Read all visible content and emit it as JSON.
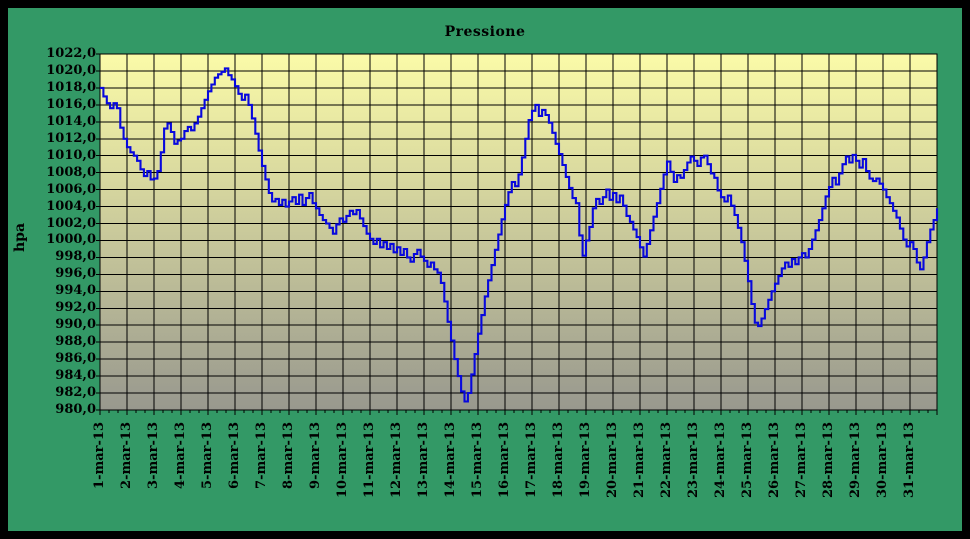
{
  "window": {
    "outer_border_color": "#000000",
    "chart_background_color": "#339966"
  },
  "chart_data": {
    "type": "line",
    "title": "Pressione",
    "xlabel": "",
    "ylabel": "hpa",
    "ylim": [
      980,
      1022
    ],
    "y_tick_step": 2,
    "grid": true,
    "legend": "none",
    "plot_background_gradient_top": "#fbfba8",
    "plot_background_gradient_bottom": "#98988e",
    "grid_color": "#000000",
    "line_color": "#0808dd",
    "y_tick_labels": [
      "1022,0",
      "1020,0",
      "1018,0",
      "1016,0",
      "1014,0",
      "1012,0",
      "1010,0",
      "1008,0",
      "1006,0",
      "1004,0",
      "1002,0",
      "1000,0",
      "998,0",
      "996,0",
      "994,0",
      "992,0",
      "990,0",
      "988,0",
      "986,0",
      "984,0",
      "982,0",
      "980,0"
    ],
    "x_tick_labels": [
      "1-mar-13",
      "2-mar-13",
      "3-mar-13",
      "4-mar-13",
      "5-mar-13",
      "6-mar-13",
      "7-mar-13",
      "8-mar-13",
      "9-mar-13",
      "10-mar-13",
      "11-mar-13",
      "12-mar-13",
      "13-mar-13",
      "14-mar-13",
      "15-mar-13",
      "16-mar-13",
      "17-mar-13",
      "18-mar-13",
      "19-mar-13",
      "20-mar-13",
      "21-mar-13",
      "22-mar-13",
      "23-mar-13",
      "24-mar-13",
      "25-mar-13",
      "26-mar-13",
      "27-mar-13",
      "28-mar-13",
      "29-mar-13",
      "30-mar-13",
      "31-mar-13"
    ],
    "x_minor_ticks_per_day": 3,
    "series": [
      {
        "name": "Pressione (hpa)",
        "x_start": "1-mar-13 00:00",
        "x_step_hours": 3,
        "values": [
          1018.0,
          1017.0,
          1016.2,
          1015.6,
          1016.2,
          1015.6,
          1013.3,
          1012.0,
          1011.0,
          1010.4,
          1010.0,
          1009.4,
          1008.4,
          1007.6,
          1008.2,
          1007.2,
          1007.3,
          1008.2,
          1010.4,
          1013.2,
          1013.8,
          1012.8,
          1011.4,
          1011.8,
          1012.0,
          1012.9,
          1013.4,
          1013.0,
          1013.8,
          1014.6,
          1015.6,
          1016.6,
          1017.6,
          1018.4,
          1019.2,
          1019.6,
          1019.9,
          1020.3,
          1019.5,
          1019.0,
          1018.2,
          1017.3,
          1016.6,
          1017.2,
          1016.0,
          1014.4,
          1012.6,
          1010.6,
          1008.8,
          1007.2,
          1005.6,
          1004.6,
          1004.9,
          1004.2,
          1004.8,
          1004.0,
          1004.6,
          1005.1,
          1004.3,
          1005.4,
          1004.2,
          1005.0,
          1005.6,
          1004.4,
          1003.8,
          1003.0,
          1002.4,
          1002.0,
          1001.5,
          1000.8,
          1001.9,
          1002.6,
          1002.2,
          1002.9,
          1003.5,
          1003.1,
          1003.6,
          1002.6,
          1001.7,
          1000.8,
          1000.2,
          999.6,
          1000.2,
          999.2,
          999.8,
          999.0,
          999.6,
          998.6,
          999.2,
          998.3,
          999.0,
          998.0,
          997.5,
          998.4,
          998.9,
          998.1,
          997.6,
          996.9,
          997.4,
          996.6,
          996.2,
          995.0,
          992.8,
          990.4,
          988.2,
          986.0,
          984.0,
          982.2,
          981.0,
          982.0,
          984.2,
          986.6,
          989.0,
          991.2,
          993.4,
          995.3,
          997.1,
          998.9,
          1000.7,
          1002.5,
          1004.2,
          1005.7,
          1006.9,
          1006.4,
          1007.8,
          1009.8,
          1012.0,
          1014.2,
          1015.3,
          1016.0,
          1014.7,
          1015.4,
          1014.8,
          1013.9,
          1012.7,
          1011.4,
          1010.2,
          1008.9,
          1007.5,
          1006.2,
          1005.0,
          1004.4,
          1000.6,
          998.2,
          1000.0,
          1001.6,
          1003.8,
          1004.9,
          1004.3,
          1005.1,
          1006.0,
          1004.8,
          1005.6,
          1004.5,
          1005.3,
          1004.1,
          1002.9,
          1002.2,
          1001.3,
          1000.4,
          999.2,
          998.1,
          999.6,
          1001.2,
          1002.8,
          1004.4,
          1006.1,
          1007.8,
          1009.3,
          1008.1,
          1006.9,
          1007.7,
          1007.4,
          1008.3,
          1009.2,
          1009.9,
          1009.4,
          1008.8,
          1009.8,
          1010.0,
          1009.0,
          1007.9,
          1007.4,
          1005.9,
          1005.1,
          1004.6,
          1005.3,
          1004.1,
          1003.0,
          1001.5,
          999.8,
          997.6,
          995.2,
          992.5,
          990.3,
          989.9,
          990.8,
          991.9,
          993.0,
          994.0,
          994.9,
          995.8,
          996.7,
          997.4,
          996.9,
          997.8,
          997.2,
          998.0,
          998.5,
          998.0,
          999.0,
          1000.1,
          1001.2,
          1002.4,
          1003.8,
          1005.2,
          1006.3,
          1007.4,
          1006.6,
          1007.9,
          1009.0,
          1009.9,
          1009.2,
          1010.1,
          1009.4,
          1008.6,
          1009.6,
          1008.2,
          1007.3,
          1007.0,
          1007.3,
          1006.7,
          1006.0,
          1005.1,
          1004.4,
          1003.5,
          1002.7,
          1001.4,
          1000.1,
          999.3,
          999.8,
          999.0,
          997.4,
          996.6,
          998.0,
          999.8,
          1001.3,
          1002.4,
          1003.8
        ]
      }
    ]
  }
}
